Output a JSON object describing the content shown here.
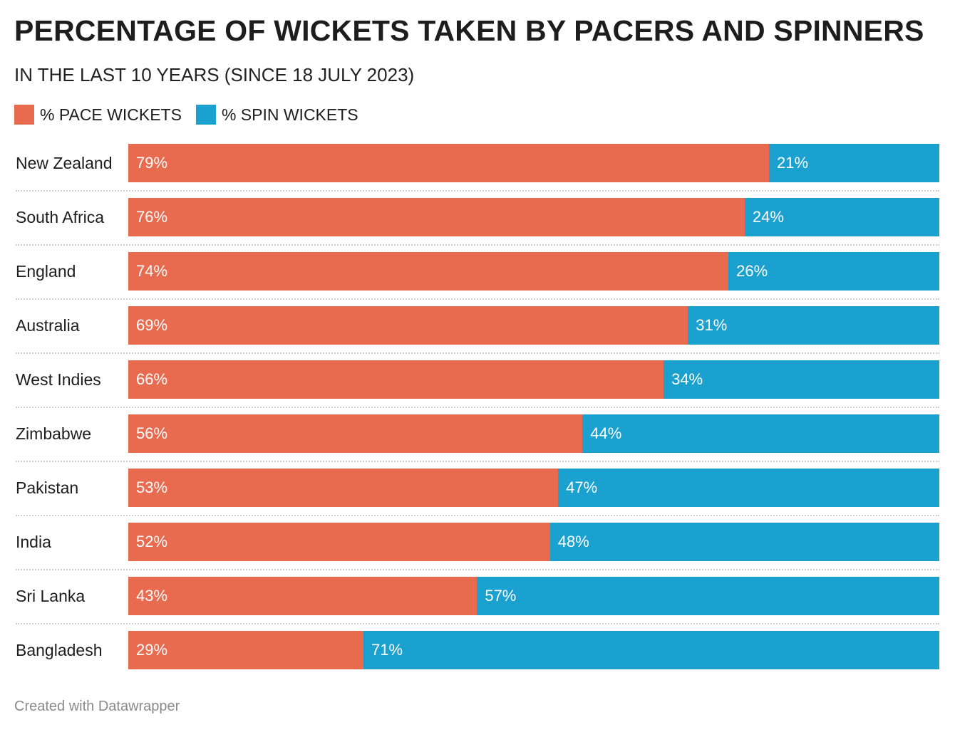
{
  "title": "PERCENTAGE OF WICKETS TAKEN BY PACERS AND SPINNERS",
  "subtitle": "IN THE LAST 10 YEARS (SINCE 18 JULY 2023)",
  "footer": "Created with Datawrapper",
  "chart_data": {
    "type": "bar",
    "orientation": "horizontal",
    "stacked": true,
    "title": "PERCENTAGE OF WICKETS TAKEN BY PACERS AND SPINNERS",
    "subtitle": "IN THE LAST 10 YEARS (SINCE 18 JULY 2023)",
    "xlim": [
      0,
      100
    ],
    "grid": false,
    "legend_position": "top-left",
    "categories": [
      "New Zealand",
      "South Africa",
      "England",
      "Australia",
      "West Indies",
      "Zimbabwe",
      "Pakistan",
      "India",
      "Sri Lanka",
      "Bangladesh"
    ],
    "series": [
      {
        "name": "% PACE WICKETS",
        "color": "#e86b4f",
        "values": [
          79,
          76,
          74,
          69,
          66,
          56,
          53,
          52,
          43,
          29
        ]
      },
      {
        "name": "% SPIN WICKETS",
        "color": "#1aa1cf",
        "values": [
          21,
          24,
          26,
          31,
          34,
          44,
          47,
          48,
          57,
          71
        ]
      }
    ]
  }
}
